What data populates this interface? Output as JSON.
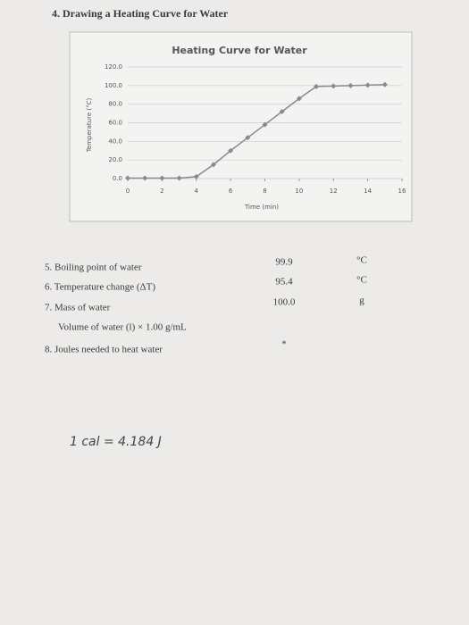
{
  "header": {
    "title": "4. Drawing a Heating Curve for Water"
  },
  "chart_data": {
    "type": "line",
    "title": "Heating Curve for Water",
    "x_label": "Time (min)",
    "y_label": "Temperature (°C)",
    "x": [
      0,
      1,
      2,
      3,
      4,
      5,
      6,
      7,
      8,
      9,
      10,
      11,
      12,
      13,
      14,
      15
    ],
    "series": [
      {
        "color": "#8a8a8a",
        "values": [
          0.5,
          0.5,
          0.5,
          0.5,
          2,
          15,
          30,
          44,
          58,
          72,
          86,
          99,
          99.5,
          100,
          100.5,
          101
        ]
      }
    ],
    "xlim": [
      0,
      16
    ],
    "xticks": [
      0,
      2,
      4,
      6,
      8,
      10,
      12,
      14,
      16
    ],
    "ylim": [
      0,
      120
    ],
    "yticks": [
      {
        "value": 0,
        "label": "0.0"
      },
      {
        "value": 20,
        "label": "20.0"
      },
      {
        "value": 40,
        "label": "40.0"
      },
      {
        "value": 60,
        "label": "60.0"
      },
      {
        "value": 80,
        "label": "80.0"
      },
      {
        "value": 100,
        "label": "100.0"
      },
      {
        "value": 120,
        "label": "120.0"
      }
    ],
    "grid": true
  },
  "questions": [
    {
      "label": "5. Boiling point of water",
      "value": "99.9",
      "unit": "°C"
    },
    {
      "label": "6. Temperature change (ΔT)",
      "value": "95.4",
      "unit": "°C"
    },
    {
      "label": "7. Mass of water",
      "value": "100.0",
      "unit": "g"
    },
    {
      "label": "Volume of water (l) × 1.00 g/mL"
    },
    {
      "label": "8. Joules needed to heat water",
      "value": "*"
    }
  ],
  "note": "1 cal = 4.184 J"
}
